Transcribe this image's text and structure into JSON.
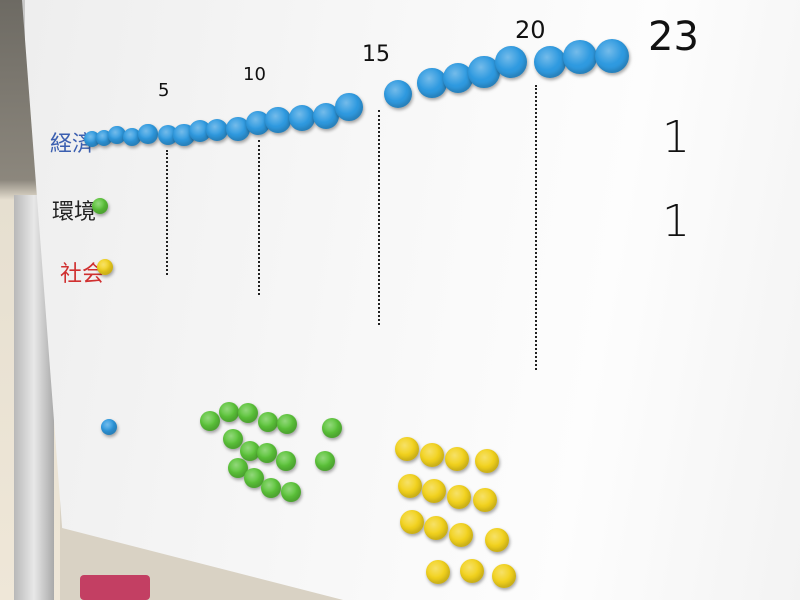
{
  "colors": {
    "blue": "#2f9ae0",
    "green": "#5cc43a",
    "yellow": "#f2d21d",
    "economy_label": "#3b5fb0",
    "environment_label": "#222222",
    "society_label": "#d03030"
  },
  "categories": [
    {
      "label": "経済",
      "count": 23
    },
    {
      "label": "環境",
      "count": 1
    },
    {
      "label": "社会",
      "count": 1
    }
  ],
  "scale_marks": [
    "5",
    "10",
    "15",
    "20",
    "23"
  ],
  "tallies": [
    "1",
    "1"
  ]
}
